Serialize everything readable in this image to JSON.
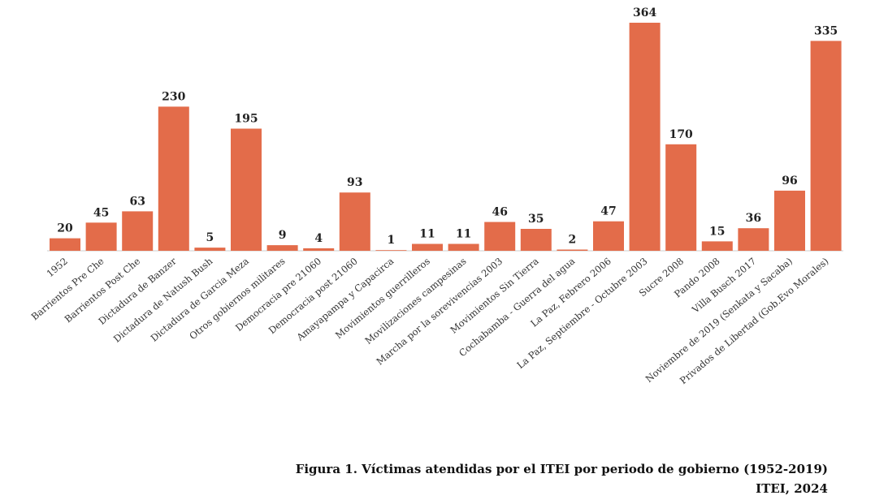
{
  "chart_data": {
    "type": "bar",
    "categories": [
      "1952",
      "Barrientos Pre Che",
      "Barrientos Post Che",
      "Dictadura de Banzer",
      "Dictadura de Natush Bush",
      "Dictadura de Garcia Meza",
      "Otros gobiernos militares",
      "Democracia pre 21060",
      "Democracia post 21060",
      "Amayapampa y Capacirca",
      "Movimientos guerrilleros",
      "Movilizaciones campesinas",
      "Marcha por la sorevivencias 2003",
      "Movimientos Sin Tierra",
      "Cochabamba - Guerra del agua",
      "La Paz, Febrero 2006",
      "La Paz, Septiembre - Octubre 2003",
      "Sucre 2008",
      "Pando 2008",
      "Villa Busch 2017",
      "Noviembre de 2019 (Senkata y Sacaba)",
      "Privados de Libertad (Gob.Evo Morales)"
    ],
    "values": [
      20,
      45,
      63,
      230,
      5,
      195,
      9,
      4,
      93,
      1,
      11,
      11,
      46,
      35,
      2,
      47,
      364,
      170,
      15,
      36,
      96,
      335
    ],
    "ylim": [
      0,
      364
    ],
    "grid": false,
    "bar_color": "#E36C4A",
    "title": "",
    "xlabel": "",
    "ylabel": ""
  },
  "caption": {
    "title": "Figura 1. Víctimas atendidas por el ITEI por periodo de gobierno (1952-2019)",
    "source": "ITEI, 2024"
  }
}
